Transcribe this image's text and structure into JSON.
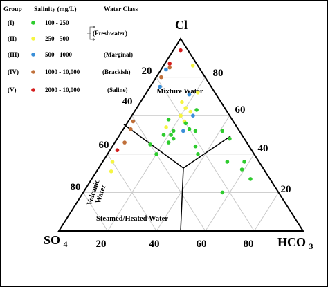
{
  "chart_data": {
    "type": "scatter",
    "subtype": "ternary",
    "corners": {
      "top": "Cl",
      "left": "SO4",
      "right": "HCO3"
    },
    "legend": {
      "headers": {
        "group": "Group",
        "salinity": "Salinity (mg/L)",
        "class": "Water Class"
      },
      "rows": [
        {
          "group": "(I)",
          "range": "100 - 250",
          "class": "",
          "color": "#2ecc2e"
        },
        {
          "group": "(II)",
          "range": "250 - 500",
          "class": "",
          "color": "#f5f542"
        },
        {
          "group": "(III)",
          "range": "500 - 1000",
          "class": "(Marginal)",
          "color": "#3a8fd8"
        },
        {
          "group": "(IV)",
          "range": "1000 - 10,000",
          "class": "(Brackish)",
          "color": "#c0703a"
        },
        {
          "group": "(V)",
          "range": "2000 - 10,000",
          "class": "(Saline)",
          "color": "#d41c1c"
        }
      ],
      "bracket_label": "(Freshwater)"
    },
    "ticks": {
      "bottom": [
        "20",
        "40",
        "60",
        "80"
      ],
      "left": [
        "20",
        "40",
        "60",
        "80"
      ],
      "right": [
        "80",
        "60",
        "40",
        "20"
      ]
    },
    "regions": {
      "top": "Mixture Water",
      "left": "Volcanic Water",
      "bottom": "Steamed/Heated Water"
    },
    "points": [
      {
        "cl": 94,
        "so4": 3,
        "hco3": 3,
        "group": "V"
      },
      {
        "cl": 87,
        "so4": 11,
        "hco3": 2,
        "group": "V"
      },
      {
        "cl": 84,
        "so4": 14,
        "hco3": 2,
        "group": "III"
      },
      {
        "cl": 85,
        "so4": 12,
        "hco3": 3,
        "group": "IV"
      },
      {
        "cl": 80,
        "so4": 18,
        "hco3": 2,
        "group": "IV"
      },
      {
        "cl": 75,
        "so4": 21,
        "hco3": 4,
        "group": "III"
      },
      {
        "cl": 57,
        "so4": 41,
        "hco3": 2,
        "group": "IV"
      },
      {
        "cl": 53,
        "so4": 44,
        "hco3": 3,
        "group": "IV"
      },
      {
        "cl": 46,
        "so4": 50,
        "hco3": 4,
        "group": "IV"
      },
      {
        "cl": 42,
        "so4": 55,
        "hco3": 3,
        "group": "V"
      },
      {
        "cl": 36,
        "so4": 60,
        "hco3": 4,
        "group": "II"
      },
      {
        "cl": 31,
        "so4": 63,
        "hco3": 6,
        "group": "II"
      },
      {
        "cl": 86,
        "so4": 2,
        "hco3": 12,
        "group": "II"
      },
      {
        "cl": 72,
        "so4": 7,
        "hco3": 21,
        "group": "II"
      },
      {
        "cl": 67,
        "so4": 16,
        "hco3": 17,
        "group": "II"
      },
      {
        "cl": 64,
        "so4": 16,
        "hco3": 20,
        "group": "II"
      },
      {
        "cl": 62,
        "so4": 15,
        "hco3": 23,
        "group": "II"
      },
      {
        "cl": 60,
        "so4": 20,
        "hco3": 20,
        "group": "II"
      },
      {
        "cl": 57,
        "so4": 20,
        "hco3": 23,
        "group": "II"
      },
      {
        "cl": 54,
        "so4": 29,
        "hco3": 17,
        "group": "II"
      },
      {
        "cl": 63,
        "so4": 12,
        "hco3": 25,
        "group": "I"
      },
      {
        "cl": 71,
        "so4": 11,
        "hco3": 18,
        "group": "III"
      },
      {
        "cl": 60,
        "so4": 15,
        "hco3": 25,
        "group": "III"
      },
      {
        "cl": 58,
        "so4": 26,
        "hco3": 16,
        "group": "I"
      },
      {
        "cl": 56,
        "so4": 20,
        "hco3": 24,
        "group": "I"
      },
      {
        "cl": 53,
        "so4": 20,
        "hco3": 27,
        "group": "I"
      },
      {
        "cl": 52,
        "so4": 27,
        "hco3": 21,
        "group": "I"
      },
      {
        "cl": 50,
        "so4": 29,
        "hco3": 21,
        "group": "I"
      },
      {
        "cl": 50,
        "so4": 32,
        "hco3": 18,
        "group": "I"
      },
      {
        "cl": 48,
        "so4": 29,
        "hco3": 23,
        "group": "I"
      },
      {
        "cl": 45,
        "so4": 40,
        "hco3": 15,
        "group": "I"
      },
      {
        "cl": 46,
        "so4": 32,
        "hco3": 22,
        "group": "I"
      },
      {
        "cl": 40,
        "so4": 40,
        "hco3": 20,
        "group": "I"
      },
      {
        "cl": 52,
        "so4": 23,
        "hco3": 25,
        "group": "III"
      },
      {
        "cl": 52,
        "so4": 18,
        "hco3": 30,
        "group": "I"
      },
      {
        "cl": 52,
        "so4": 7,
        "hco3": 41,
        "group": "I"
      },
      {
        "cl": 48,
        "so4": 6,
        "hco3": 46,
        "group": "I"
      },
      {
        "cl": 44,
        "so4": 22,
        "hco3": 34,
        "group": "I"
      },
      {
        "cl": 40,
        "so4": 23,
        "hco3": 37,
        "group": "I"
      },
      {
        "cl": 36,
        "so4": 6,
        "hco3": 58,
        "group": "I"
      },
      {
        "cl": 36,
        "so4": 13,
        "hco3": 51,
        "group": "I"
      },
      {
        "cl": 32,
        "so4": 9,
        "hco3": 59,
        "group": "I"
      },
      {
        "cl": 27,
        "so4": 8,
        "hco3": 65,
        "group": "I"
      },
      {
        "cl": 20,
        "so4": 23,
        "hco3": 57,
        "group": "I"
      }
    ]
  }
}
